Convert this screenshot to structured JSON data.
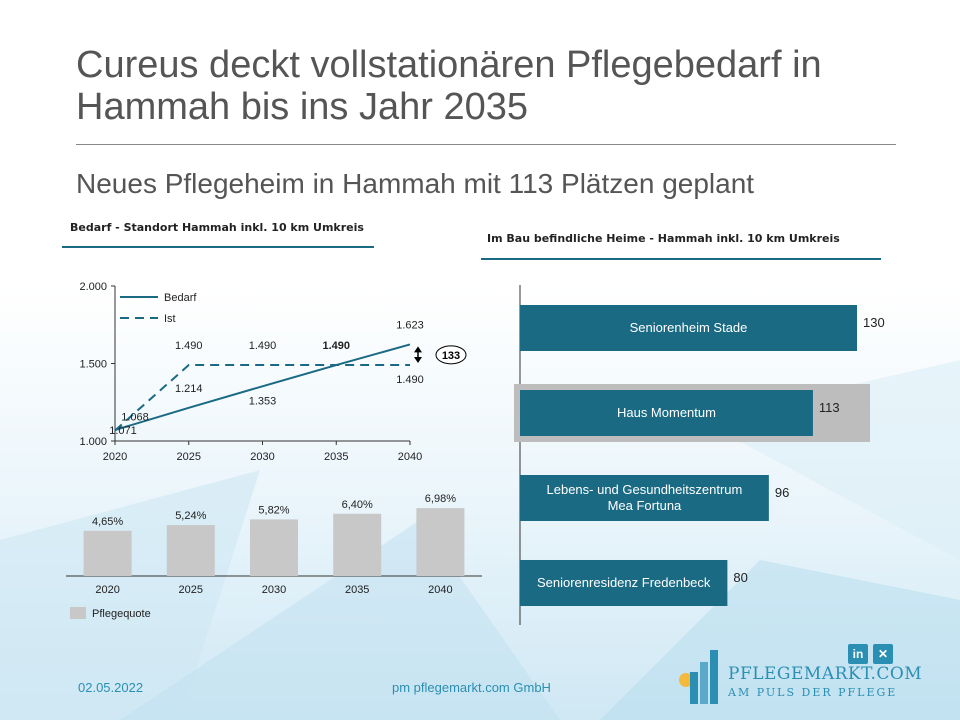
{
  "slide": {
    "title": "Cureus deckt vollstationären Pflegebedarf in Hammah bis ins Jahr 2035",
    "subtitle": "Neues Pflegeheim in Hammah mit 113 Plätzen geplant"
  },
  "footer": {
    "date": "02.05.2022",
    "company": "pm pflegemarkt.com GmbH"
  },
  "logo": {
    "name": "PFLEGEMARKT.COM",
    "tagline": "AM PULS DER PFLEGE",
    "social": [
      "linkedin-icon",
      "xing-icon"
    ]
  },
  "colors": {
    "accent": "#1a6a84",
    "bar_gray": "#c8c8c8",
    "highlight_gray": "#bdbdbd",
    "text": "#555555"
  },
  "chart_data": [
    {
      "type": "line",
      "title": "Bedarf - Standort Hammah inkl. 10 km Umkreis",
      "x": [
        2020,
        2025,
        2030,
        2035,
        2040
      ],
      "ylim": [
        1000,
        2000
      ],
      "yticks": [
        "1.000",
        "1.500",
        "2.000"
      ],
      "series": [
        {
          "name": "Bedarf",
          "style": "solid",
          "values": [
            1071,
            1214,
            1353,
            1490,
            1623
          ],
          "labels": [
            "1.071",
            "1.214",
            "1.353",
            "1.490",
            "1.623"
          ]
        },
        {
          "name": "Ist",
          "style": "dashed",
          "values": [
            1068,
            1490,
            1490,
            1490,
            1490
          ],
          "labels": [
            "1.068",
            "1.490",
            "1.490",
            "1.490",
            "1.490"
          ]
        }
      ],
      "annotation": "133",
      "legend": "top-left"
    },
    {
      "type": "bar",
      "categories": [
        "2020",
        "2025",
        "2030",
        "2035",
        "2040"
      ],
      "series": [
        {
          "name": "Pflegequote",
          "values": [
            4.65,
            5.24,
            5.82,
            6.4,
            6.98
          ],
          "labels": [
            "4,65%",
            "5,24%",
            "5,82%",
            "6,40%",
            "6,98%"
          ]
        }
      ],
      "legend": "bottom-left"
    },
    {
      "type": "bar",
      "orientation": "horizontal",
      "title": "Im Bau befindliche Heime - Hammah inkl. 10 km Umkreis",
      "categories": [
        "Seniorenheim Stade",
        "Haus Momentum",
        "Lebens- und Gesundheitszentrum Mea Fortuna",
        "Seniorenresidenz Fredenbeck"
      ],
      "values": [
        130,
        113,
        96,
        80
      ],
      "highlight": "Haus Momentum"
    }
  ]
}
